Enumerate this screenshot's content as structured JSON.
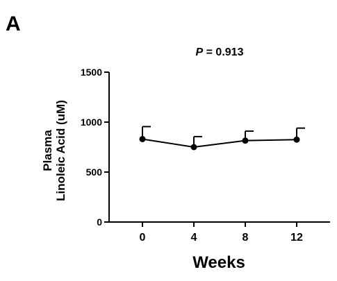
{
  "panel_label": "A",
  "chart_data": {
    "type": "line",
    "title": "",
    "annotation": {
      "p_symbol": "P",
      "p_rest": " = 0.913"
    },
    "x": [
      0,
      4,
      8,
      12
    ],
    "x_tick_labels": [
      "0",
      "4",
      "8",
      "12"
    ],
    "xlabel": "Weeks",
    "ylabel_line1": "Plasma",
    "ylabel_line2": "Linoleic Acid (uM)",
    "ylim": [
      0,
      1500
    ],
    "y_ticks": [
      0,
      500,
      1000,
      1500
    ],
    "y_tick_labels": [
      "0",
      "500",
      "1000",
      "1500"
    ],
    "series": [
      {
        "values": [
          830,
          750,
          815,
          825
        ],
        "error_upper": [
          125,
          105,
          95,
          115
        ]
      }
    ],
    "color": "#000000",
    "grid": false
  }
}
